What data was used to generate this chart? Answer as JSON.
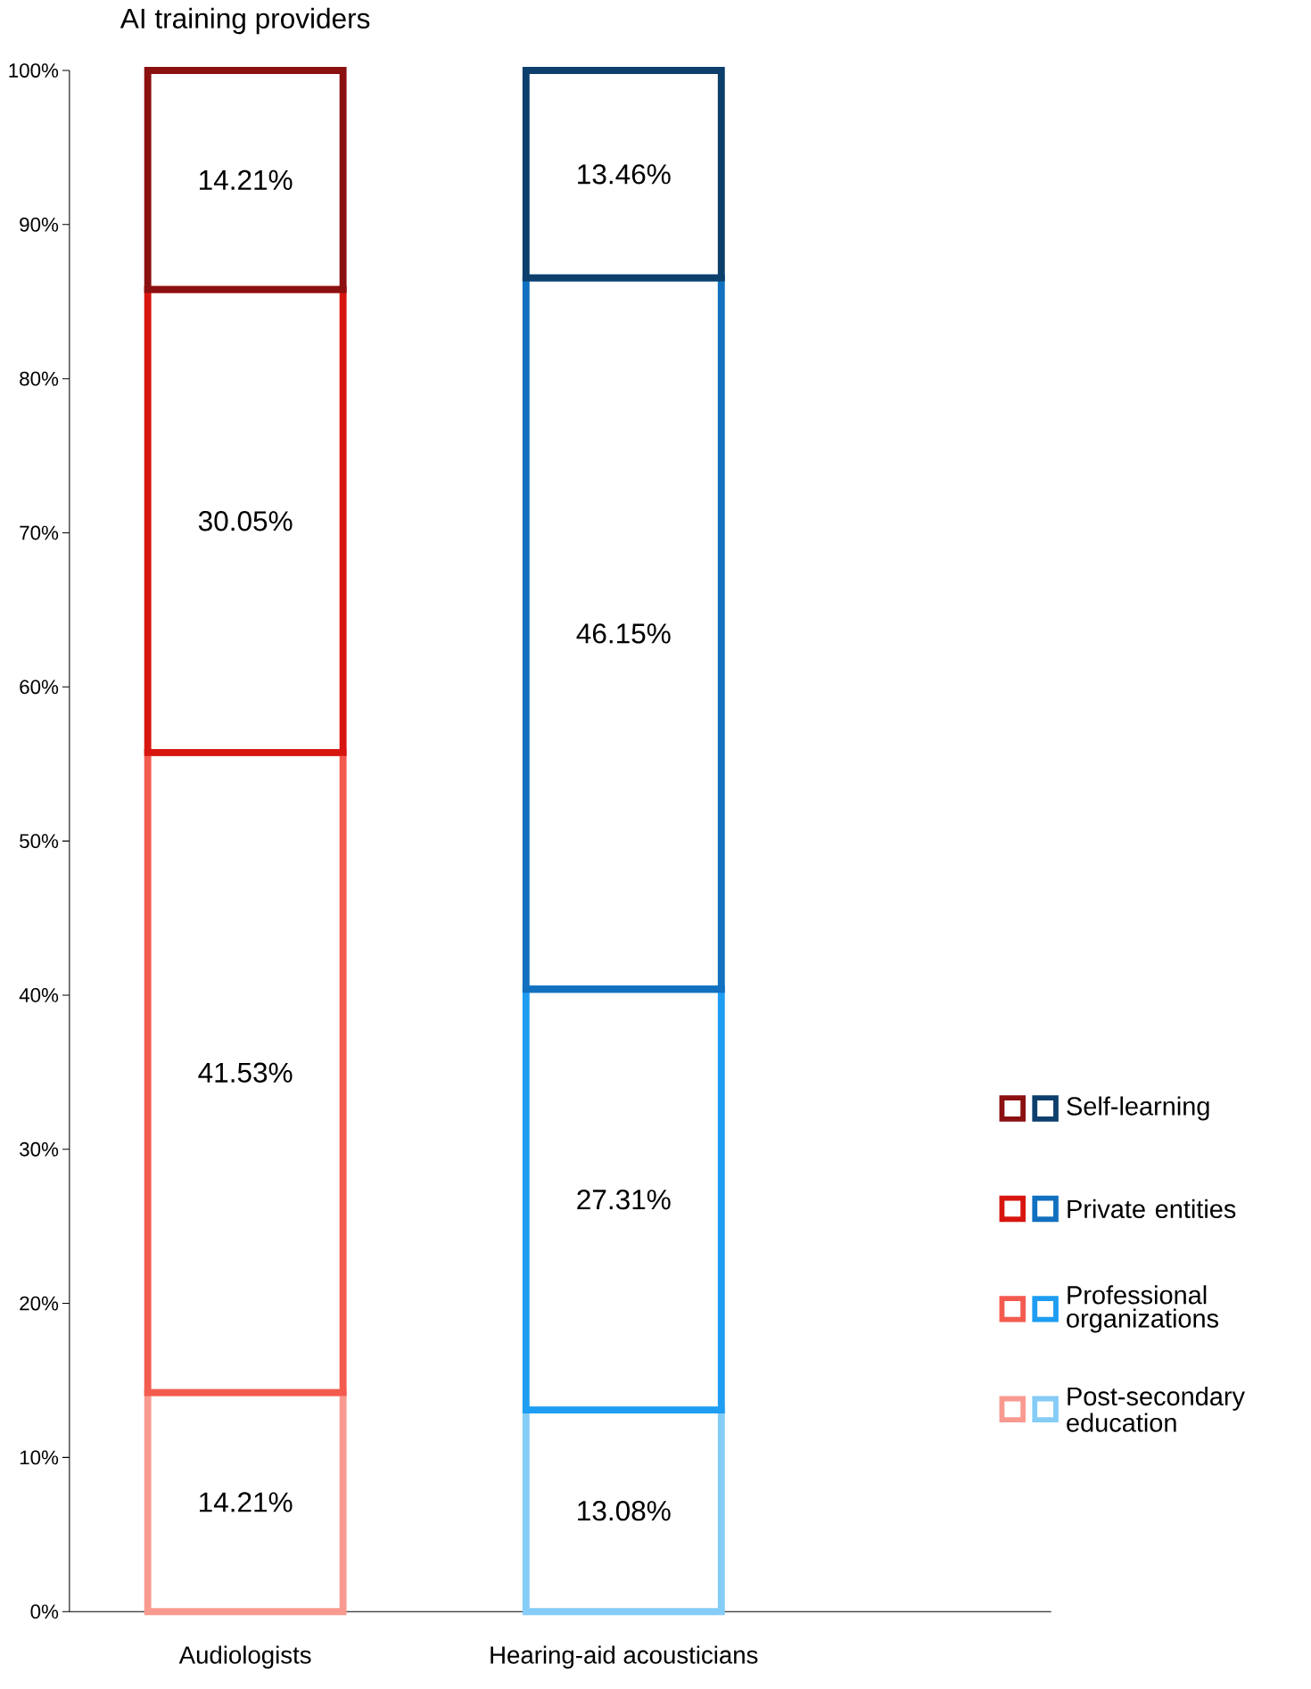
{
  "chart_data": {
    "type": "bar",
    "title": "AI training providers",
    "stacked": true,
    "categories": [
      "Audiologists",
      "Hearing-aid acousticians"
    ],
    "series": [
      {
        "name": "Post-secondary education",
        "colors": [
          "#f99a90",
          "#85ccf7"
        ],
        "values": [
          14.21,
          13.08
        ],
        "value_labels": [
          "14.21%",
          "13.08%"
        ]
      },
      {
        "name": "Professional organizations",
        "colors": [
          "#f45b4f",
          "#1e9df2"
        ],
        "values": [
          41.53,
          27.31
        ],
        "value_labels": [
          "41.53%",
          "27.31%"
        ]
      },
      {
        "name": "Private entities",
        "colors": [
          "#d7160f",
          "#1170bf"
        ],
        "values": [
          30.05,
          46.15
        ],
        "value_labels": [
          "30.05%",
          "46.15%"
        ]
      },
      {
        "name": "Self-learning",
        "colors": [
          "#8b1010",
          "#0d3f6c"
        ],
        "values": [
          14.21,
          13.46
        ],
        "value_labels": [
          "14.21%",
          "13.46%"
        ]
      }
    ],
    "ylim": [
      0,
      100
    ],
    "yticks": [
      {
        "value": 0,
        "label": "0%"
      },
      {
        "value": 10,
        "label": "10%"
      },
      {
        "value": 20,
        "label": "20%"
      },
      {
        "value": 30,
        "label": "30%"
      },
      {
        "value": 40,
        "label": "40%"
      },
      {
        "value": 50,
        "label": "50%"
      },
      {
        "value": 60,
        "label": "60%"
      },
      {
        "value": 70,
        "label": "70%"
      },
      {
        "value": 80,
        "label": "80%"
      },
      {
        "value": 90,
        "label": "90%"
      },
      {
        "value": 100,
        "label": "100%"
      }
    ],
    "legend": "right"
  }
}
